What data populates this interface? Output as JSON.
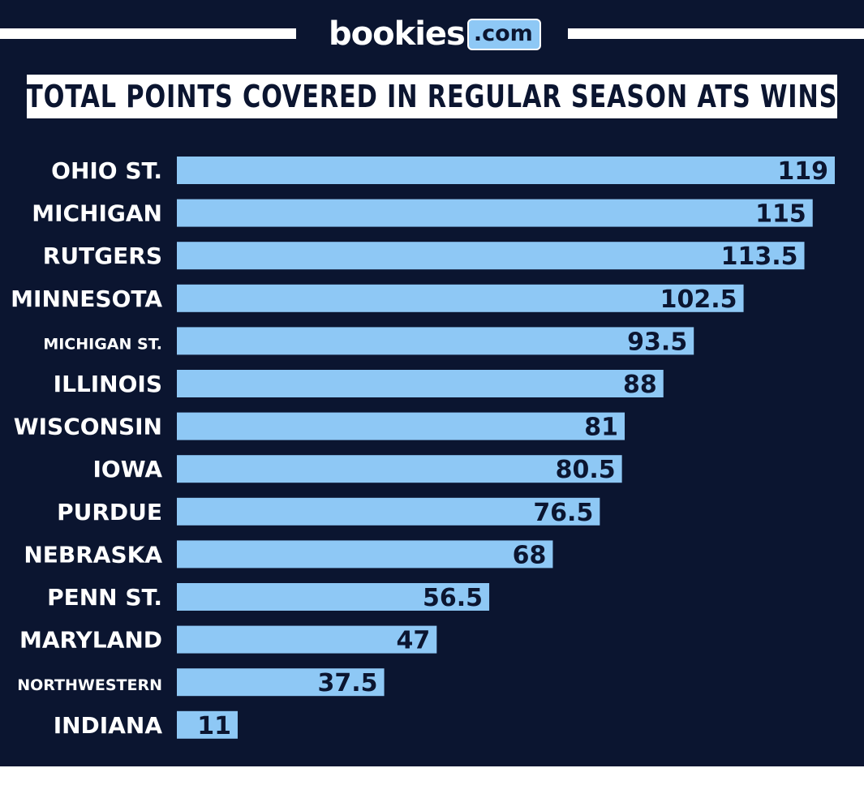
{
  "brand": {
    "name": "bookies",
    "suffix": ".com"
  },
  "colors": {
    "background": "#0b1530",
    "bar": "#8ec8f5",
    "label": "#ffffff",
    "value_text": "#0b1530"
  },
  "chart_data": {
    "type": "bar",
    "orientation": "horizontal",
    "title": "TOTAL POINTS COVERED IN REGULAR SEASON ATS WINS",
    "xlabel": "",
    "ylabel": "",
    "grid": false,
    "categories": [
      "OHIO ST.",
      "MICHIGAN",
      "RUTGERS",
      "MINNESOTA",
      "MICHIGAN ST.",
      "ILLINOIS",
      "WISCONSIN",
      "IOWA",
      "PURDUE",
      "NEBRASKA",
      "PENN ST.",
      "MARYLAND",
      "NORTHWESTERN",
      "INDIANA"
    ],
    "values": [
      119,
      115,
      113.5,
      102.5,
      93.5,
      88,
      81,
      80.5,
      76.5,
      68,
      56.5,
      47,
      37.5,
      11
    ],
    "value_labels": [
      "119",
      "115",
      "113.5",
      "102.5",
      "93.5",
      "88",
      "81",
      "80.5",
      "76.5",
      "68",
      "56.5",
      "47",
      "37.5",
      "11"
    ],
    "xlim": [
      0,
      119
    ]
  }
}
